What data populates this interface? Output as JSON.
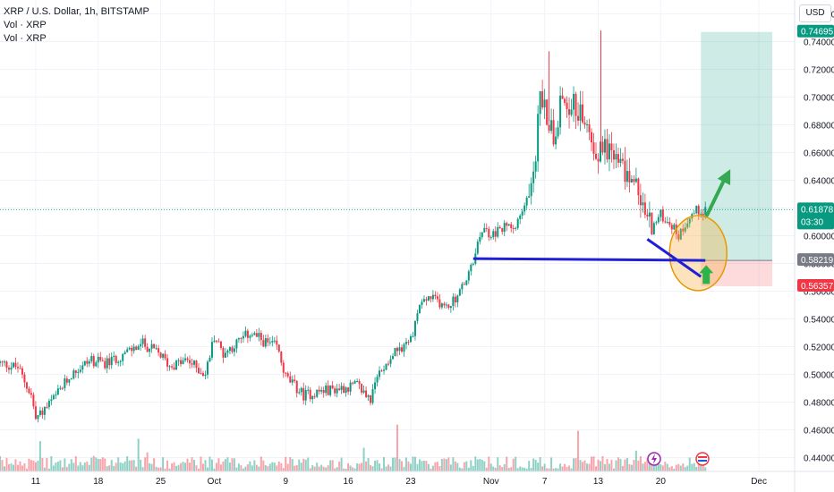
{
  "header": {
    "symbol_line": "XRP / U.S. Dollar, 1h, BITSTAMP",
    "indicators": [
      "Vol · XRP",
      "Vol · XRP"
    ],
    "currency_button": "USD"
  },
  "chart_data": {
    "type": "candlestick",
    "symbol": "XRP / U.S. Dollar",
    "interval": "1h",
    "exchange": "BITSTAMP",
    "ylim": [
      0.43,
      0.77
    ],
    "y_ticks": [
      0.44,
      0.46,
      0.48,
      0.5,
      0.52,
      0.54,
      0.56,
      0.58,
      0.6,
      0.62,
      0.64,
      0.66,
      0.68,
      0.7,
      0.72,
      0.74,
      0.76
    ],
    "y_tick_labels": [
      "0.44000",
      "0.46000",
      "0.48000",
      "0.50000",
      "0.52000",
      "0.54000",
      "0.56000",
      "0.58000",
      "0.60000",
      "0.62000",
      "0.64000",
      "0.66000",
      "0.68000",
      "0.70000",
      "0.72000",
      "0.74000",
      "0.76000"
    ],
    "x_ticks": [
      {
        "label": "11",
        "day": 11
      },
      {
        "label": "18",
        "day": 18
      },
      {
        "label": "25",
        "day": 25
      },
      {
        "label": "Oct",
        "day": 31
      },
      {
        "label": "9",
        "day": 39
      },
      {
        "label": "16",
        "day": 46
      },
      {
        "label": "23",
        "day": 53
      },
      {
        "label": "Nov",
        "day": 62
      },
      {
        "label": "7",
        "day": 68
      },
      {
        "label": "13",
        "day": 74
      },
      {
        "label": "20",
        "day": 81
      },
      {
        "label": "Dec",
        "day": 92
      }
    ],
    "x_range_days": [
      7,
      96
    ],
    "price_path": [
      [
        7,
        0.508
      ],
      [
        9,
        0.505
      ],
      [
        10.5,
        0.485
      ],
      [
        11,
        0.468
      ],
      [
        13,
        0.482
      ],
      [
        15,
        0.5
      ],
      [
        17,
        0.51
      ],
      [
        19,
        0.508
      ],
      [
        21,
        0.515
      ],
      [
        23,
        0.522
      ],
      [
        25,
        0.514
      ],
      [
        26,
        0.506
      ],
      [
        28,
        0.51
      ],
      [
        30,
        0.5
      ],
      [
        31,
        0.528
      ],
      [
        32,
        0.515
      ],
      [
        33,
        0.52
      ],
      [
        35,
        0.53
      ],
      [
        37,
        0.522
      ],
      [
        38,
        0.52
      ],
      [
        39,
        0.498
      ],
      [
        41,
        0.485
      ],
      [
        43,
        0.488
      ],
      [
        45,
        0.49
      ],
      [
        47,
        0.492
      ],
      [
        48.5,
        0.482
      ],
      [
        49.5,
        0.502
      ],
      [
        51,
        0.515
      ],
      [
        53,
        0.525
      ],
      [
        54,
        0.55
      ],
      [
        55,
        0.555
      ],
      [
        56,
        0.553
      ],
      [
        57,
        0.548
      ],
      [
        58,
        0.555
      ],
      [
        59,
        0.565
      ],
      [
        60,
        0.58
      ],
      [
        61,
        0.605
      ],
      [
        62,
        0.6
      ],
      [
        63,
        0.604
      ],
      [
        64,
        0.608
      ],
      [
        65,
        0.61
      ],
      [
        66,
        0.625
      ],
      [
        67,
        0.66
      ],
      [
        67.5,
        0.705
      ],
      [
        68,
        0.69
      ],
      [
        69,
        0.675
      ],
      [
        70,
        0.7
      ],
      [
        71,
        0.695
      ],
      [
        72,
        0.69
      ],
      [
        73,
        0.672
      ],
      [
        74,
        0.66
      ],
      [
        75,
        0.665
      ],
      [
        76,
        0.655
      ],
      [
        77,
        0.645
      ],
      [
        78,
        0.64
      ],
      [
        79,
        0.62
      ],
      [
        80,
        0.605
      ],
      [
        81,
        0.615
      ],
      [
        82,
        0.61
      ],
      [
        83,
        0.6
      ],
      [
        84,
        0.612
      ],
      [
        85,
        0.618
      ],
      [
        86,
        0.619
      ]
    ],
    "spikes": [
      {
        "day": 74.3,
        "high": 0.748
      },
      {
        "day": 68.5,
        "high": 0.733
      }
    ],
    "price_labels": [
      {
        "label": "0.74695",
        "price": 0.74695,
        "color": "#089981"
      },
      {
        "label": "0.61878",
        "time": "03:30",
        "price": 0.61878,
        "color": "#089981"
      },
      {
        "label": "0.58219",
        "price": 0.58219,
        "color": "#787b86"
      },
      {
        "label": "0.56357",
        "price": 0.56357,
        "color": "#f23645"
      }
    ],
    "position": {
      "type": "long",
      "entry": 0.58219,
      "take_profit": 0.74695,
      "stop_loss": 0.56357,
      "start_day": 85.5,
      "end_day": 93.5
    },
    "annotations": {
      "horizontal_line": {
        "from": [
          60,
          0.5835
        ],
        "to": [
          86,
          0.5822
        ],
        "color": "#1f1fd6"
      },
      "trend_line": {
        "from": [
          79.5,
          0.5975
        ],
        "to": [
          85.5,
          0.5705
        ],
        "color": "#1f1fd6"
      },
      "ellipse": {
        "center": [
          85.2,
          0.5875
        ],
        "fill": "#f5b041",
        "stroke": "#e69a00"
      },
      "arrow_up_small": {
        "at": [
          86.1,
          0.573
        ],
        "color": "#2db34a"
      },
      "arrow_up_big": {
        "from": [
          86.2,
          0.615
        ],
        "to": [
          88.8,
          0.648
        ],
        "color": "#34a853"
      }
    },
    "colors": {
      "up": "#089981",
      "down": "#f23645",
      "grid": "#f0f3fa"
    }
  }
}
